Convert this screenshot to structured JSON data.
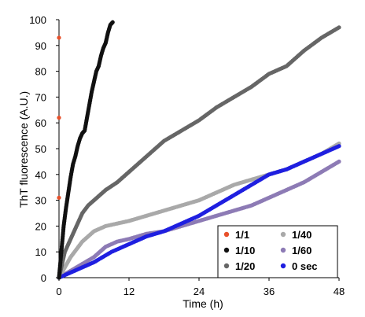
{
  "chart_data": {
    "type": "scatter",
    "title": "",
    "xlabel": "Time (h)",
    "ylabel": "ThT fluorescence (A.U.)",
    "xlim": [
      0,
      48
    ],
    "ylim": [
      0,
      100
    ],
    "x_ticks": [
      "0",
      "12",
      "24",
      "36",
      "48"
    ],
    "y_ticks": [
      "0",
      "10",
      "20",
      "30",
      "40",
      "50",
      "60",
      "70",
      "80",
      "90",
      "100"
    ],
    "x_tick_values": [
      0,
      12,
      24,
      36,
      48
    ],
    "y_tick_values": [
      0,
      10,
      20,
      30,
      40,
      50,
      60,
      70,
      80,
      90,
      100
    ],
    "grid": false,
    "legend_position": "bottom-right",
    "series": [
      {
        "name": "1/1",
        "color": "#e8502a",
        "x": [
          0,
          0,
          0
        ],
        "y": [
          31,
          62,
          93
        ]
      },
      {
        "name": "1/10",
        "color": "#111111",
        "x": [
          0,
          0.4,
          0.8,
          1.2,
          1.6,
          2,
          2.4,
          2.8,
          3.2,
          3.6,
          4,
          4.4,
          4.8,
          5.2,
          5.6,
          6,
          6.4,
          6.8,
          7.2,
          7.6,
          8,
          8.4,
          8.8,
          9.2
        ],
        "y": [
          0,
          10,
          20,
          27,
          33,
          39,
          44,
          47,
          51,
          54,
          56,
          57,
          62,
          67,
          72,
          76,
          80,
          82,
          86,
          89,
          91,
          95,
          98,
          99
        ]
      },
      {
        "name": "1/20",
        "color": "#666666",
        "x": [
          0,
          1,
          2,
          3,
          4,
          5,
          6,
          8,
          10,
          12,
          15,
          18,
          21,
          24,
          27,
          30,
          33,
          36,
          39,
          42,
          45,
          48
        ],
        "y": [
          0,
          10,
          15,
          20,
          25,
          28,
          30,
          34,
          37,
          41,
          47,
          53,
          57,
          61,
          66,
          70,
          74,
          79,
          82,
          88,
          93,
          97
        ]
      },
      {
        "name": "1/40",
        "color": "#a9a9a9",
        "x": [
          0,
          2,
          4,
          6,
          8,
          10,
          12,
          15,
          18,
          21,
          24,
          27,
          30,
          33,
          36,
          39,
          42,
          45,
          48
        ],
        "y": [
          0,
          8,
          14,
          18,
          20,
          21,
          22,
          24,
          26,
          28,
          30,
          33,
          36,
          38,
          40,
          42,
          45,
          48,
          52
        ]
      },
      {
        "name": "1/60",
        "color": "#8d7bb5",
        "x": [
          0,
          3,
          6,
          8,
          10,
          12,
          15,
          18,
          21,
          24,
          27,
          30,
          33,
          36,
          39,
          42,
          45,
          48
        ],
        "y": [
          0,
          4,
          8,
          12,
          14,
          15,
          17,
          18,
          20,
          22,
          24,
          26,
          28,
          31,
          34,
          37,
          41,
          45
        ]
      },
      {
        "name": "0 sec",
        "color": "#1f1fe0",
        "x": [
          0,
          3,
          6,
          9,
          12,
          15,
          18,
          21,
          24,
          27,
          30,
          33,
          36,
          39,
          42,
          45,
          48
        ],
        "y": [
          0,
          3,
          6,
          10,
          13,
          16,
          18,
          21,
          24,
          28,
          32,
          36,
          40,
          42,
          45,
          48,
          51
        ]
      }
    ]
  }
}
